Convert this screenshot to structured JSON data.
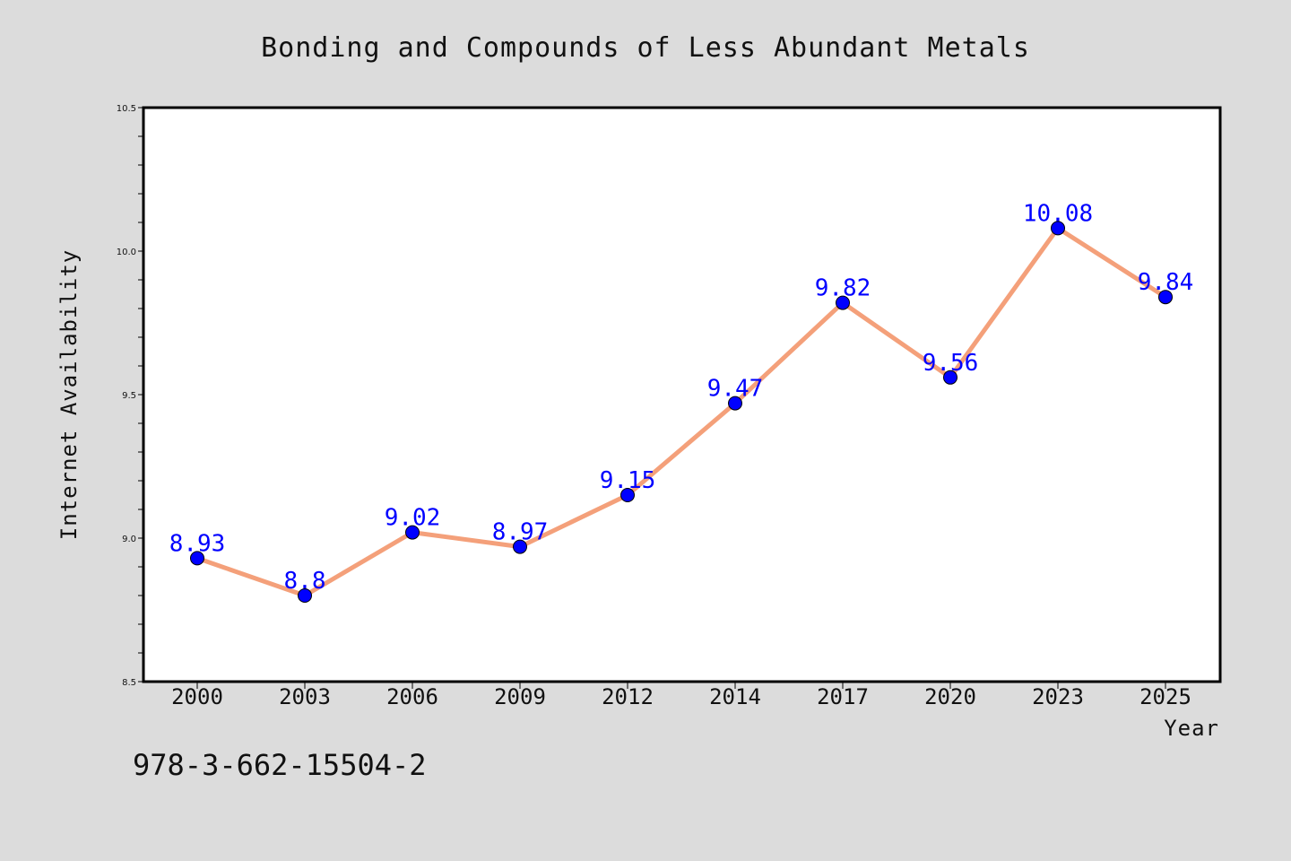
{
  "chart_data": {
    "type": "line",
    "title": "Bonding and Compounds of Less Abundant Metals",
    "xlabel": "Year",
    "ylabel": "Internet Availability",
    "categories": [
      "2000",
      "2003",
      "2006",
      "2009",
      "2012",
      "2014",
      "2017",
      "2020",
      "2023",
      "2025"
    ],
    "series": [
      {
        "values": [
          8.93,
          8.8,
          9.02,
          8.97,
          9.15,
          9.47,
          9.82,
          9.56,
          10.08,
          9.84
        ],
        "labels": [
          "8.93",
          "8.8",
          "9.02",
          "8.97",
          "9.15",
          "9.47",
          "9.82",
          "9.56",
          "10.08",
          "9.84"
        ],
        "line_color": "#f4a07a",
        "marker_color": "#0000ff"
      }
    ],
    "ylim": [
      8.5,
      10.5
    ],
    "yticks": [
      8.5,
      9.0,
      9.5,
      10.0,
      10.5
    ],
    "ytick_labels": [
      "8.5",
      "9.0",
      "9.5",
      "10.0",
      "10.5"
    ],
    "grid": false,
    "legend": "none"
  },
  "footer": {
    "isbn": "978-3-662-15504-2"
  },
  "colors": {
    "background": "#dcdcdc",
    "plot_background": "#ffffff",
    "axis": "#000000",
    "line": "#f4a07a",
    "marker": "#0000ff",
    "data_label": "#0000ff"
  }
}
